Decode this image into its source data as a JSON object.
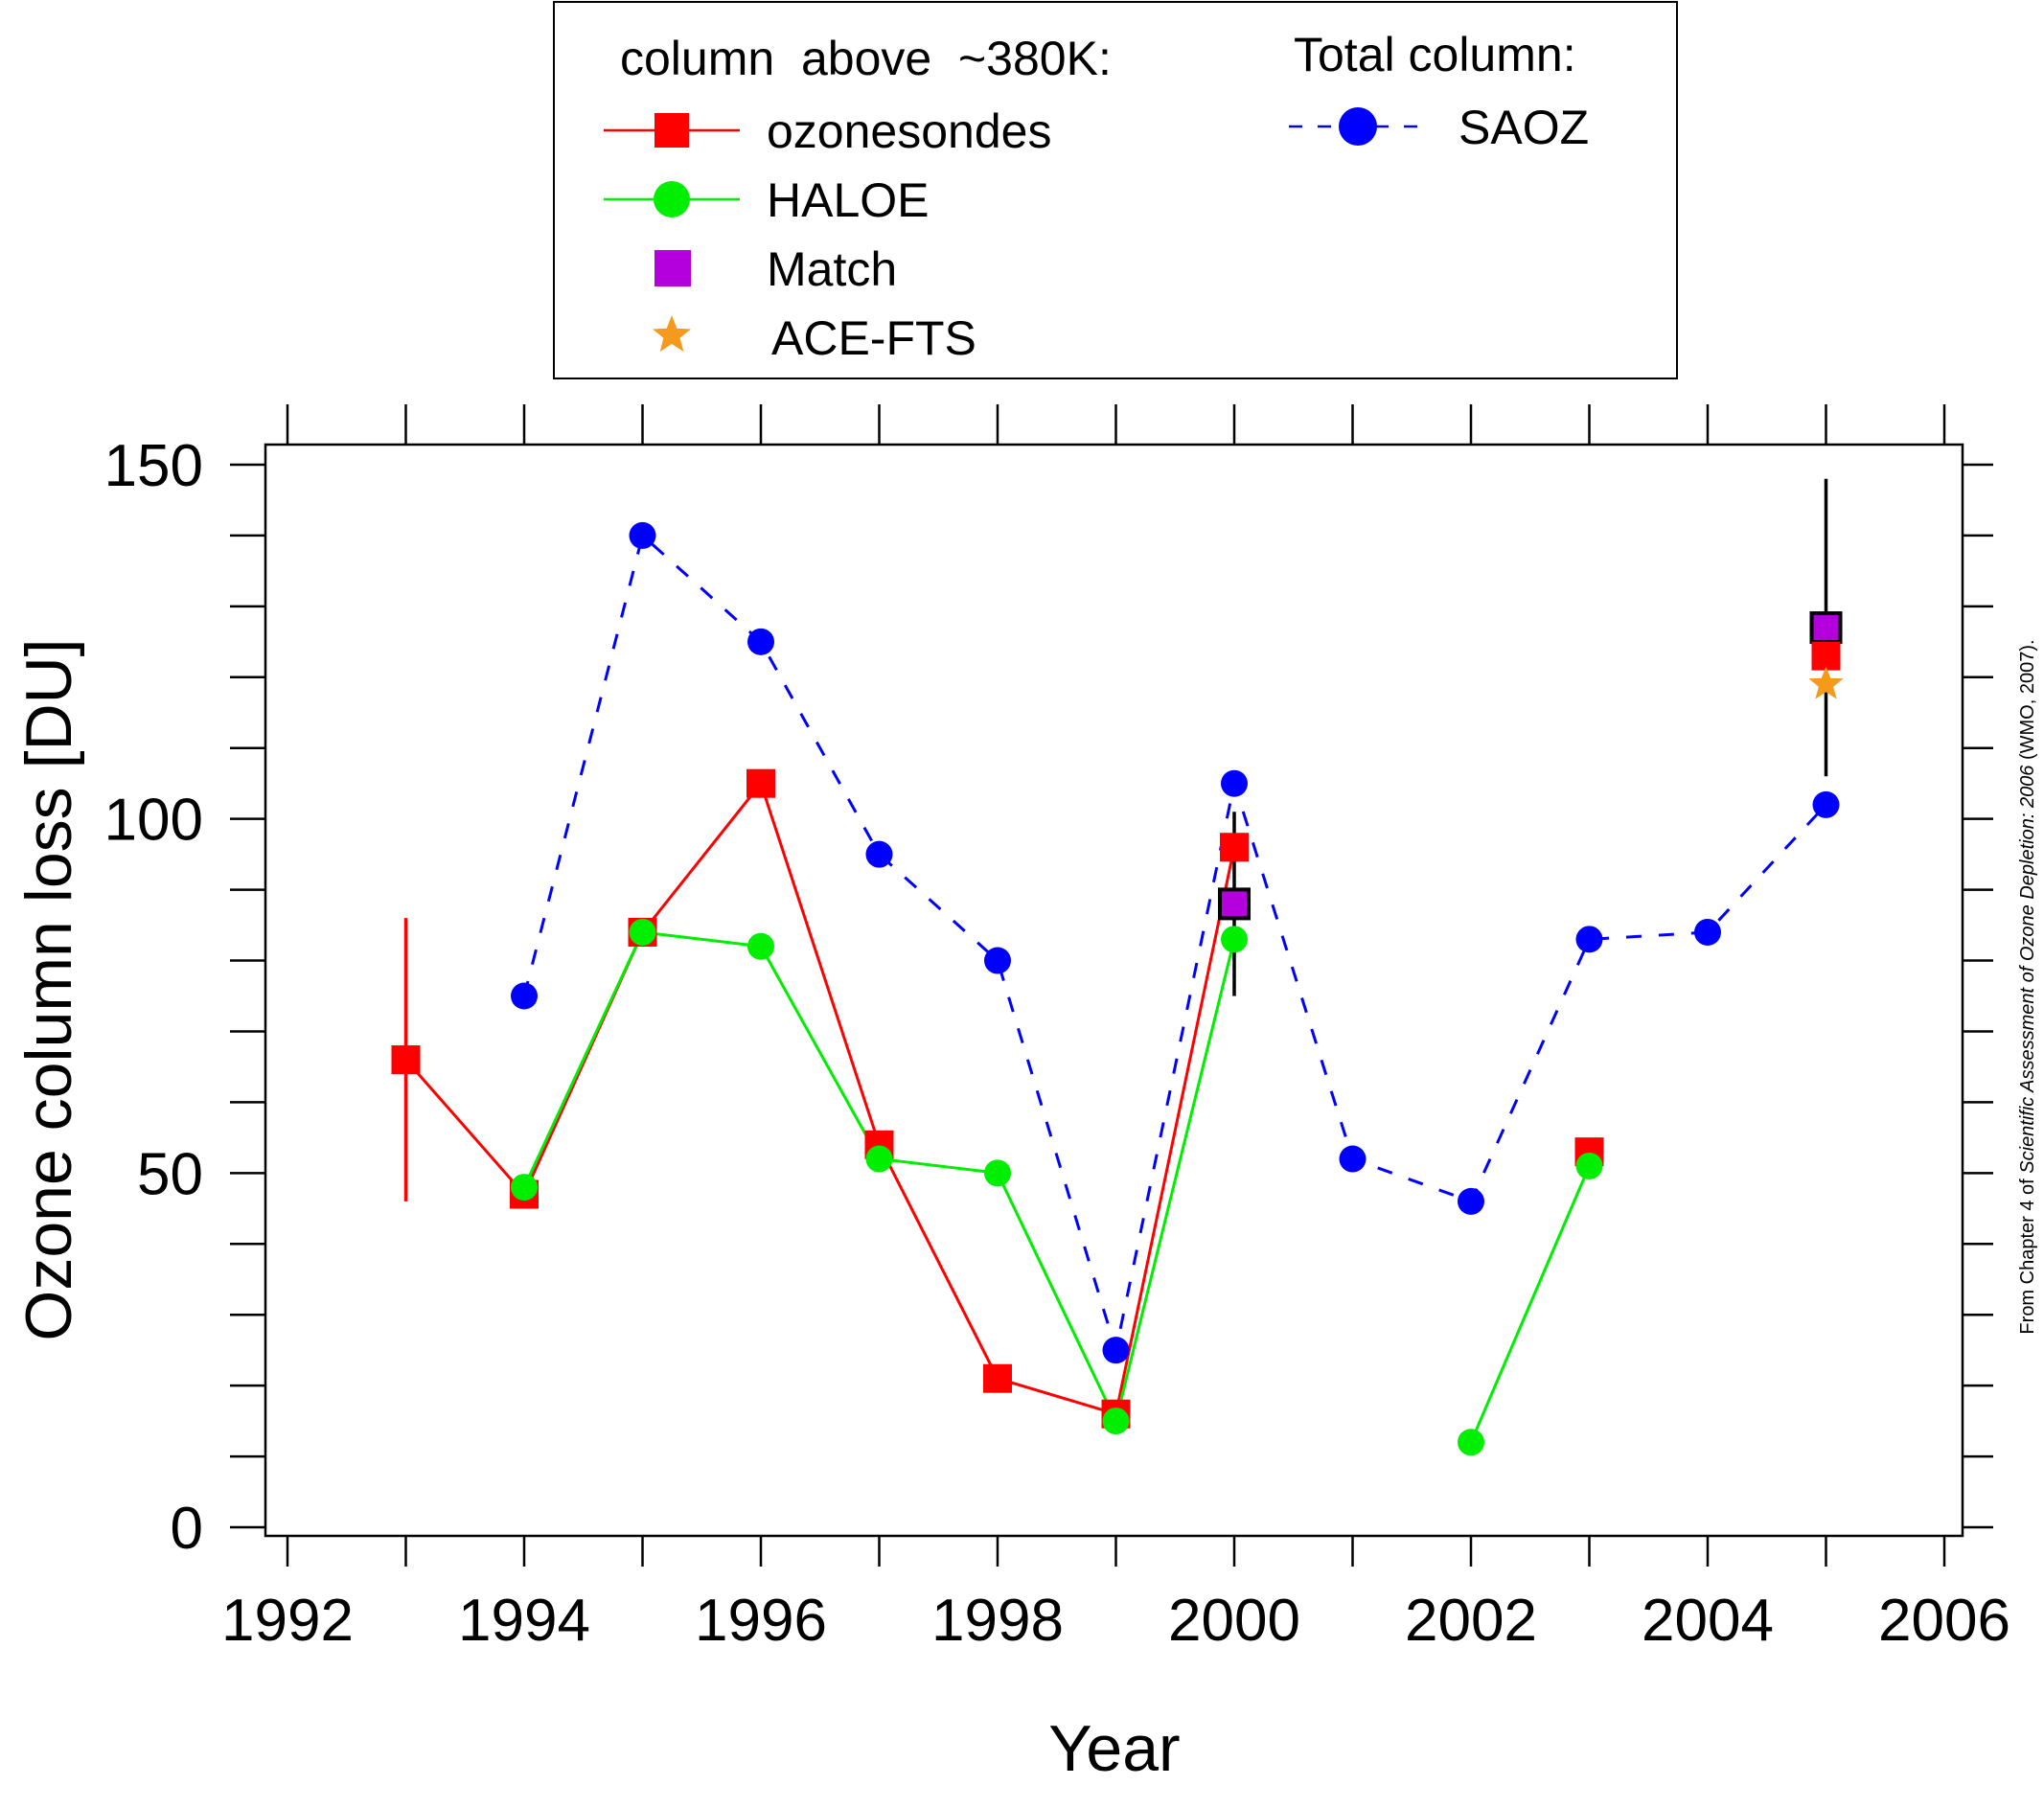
{
  "chart_data": {
    "type": "line",
    "xlabel": "Year",
    "ylabel": "Ozone column loss [DU]",
    "xlim": [
      1992,
      2006
    ],
    "ylim": [
      0,
      150
    ],
    "x_ticks": [
      "1992",
      "1994",
      "1996",
      "1998",
      "2000",
      "2002",
      "2004",
      "2006"
    ],
    "y_ticks": [
      "0",
      "50",
      "100",
      "150"
    ],
    "legend": {
      "placement": "top, outside plot",
      "group1_title": "column  above  ~380K:",
      "group2_title": "Total column:"
    },
    "credit_prefix": "From Chapter 4 of ",
    "credit_title": "Scientific Assessment of Ozone Depletion: 2006",
    "credit_suffix": " (WMO, 2007).",
    "series": [
      {
        "name": "ozonesondes",
        "color": "#ff0000",
        "marker": "square",
        "line": "solid",
        "points": [
          {
            "x": 1993,
            "y": 66,
            "err_low": 46,
            "err_high": 86
          },
          {
            "x": 1994,
            "y": 47
          },
          {
            "x": 1995,
            "y": 84
          },
          {
            "x": 1996,
            "y": 105
          },
          {
            "x": 1997,
            "y": 54
          },
          {
            "x": 1998,
            "y": 21
          },
          {
            "x": 1999,
            "y": 16
          },
          {
            "x": 2000,
            "y": 96
          },
          {
            "x": 2003,
            "y": 53
          },
          {
            "x": 2005,
            "y": 123
          }
        ],
        "segments": [
          [
            0,
            1,
            2,
            3,
            4,
            5,
            6,
            7
          ]
        ]
      },
      {
        "name": "HALOE",
        "color": "#00ee00",
        "marker": "circle",
        "line": "solid",
        "points": [
          {
            "x": 1994,
            "y": 48
          },
          {
            "x": 1995,
            "y": 84
          },
          {
            "x": 1996,
            "y": 82
          },
          {
            "x": 1997,
            "y": 52
          },
          {
            "x": 1998,
            "y": 50
          },
          {
            "x": 1999,
            "y": 15
          },
          {
            "x": 2000,
            "y": 83
          },
          {
            "x": 2002,
            "y": 12
          },
          {
            "x": 2003,
            "y": 51
          }
        ],
        "segments": [
          [
            0,
            1,
            2,
            3,
            4,
            5,
            6
          ],
          [
            7,
            8
          ]
        ]
      },
      {
        "name": "Match",
        "color": "#b400dc",
        "marker": "square-outlined",
        "line": "none",
        "points": [
          {
            "x": 2000,
            "y": 88,
            "err_low": 75,
            "err_high": 101
          },
          {
            "x": 2005,
            "y": 127,
            "err_low": 106,
            "err_high": 148
          }
        ],
        "segments": []
      },
      {
        "name": "ACE-FTS",
        "color": "#f59a1c",
        "marker": "star",
        "line": "none",
        "points": [
          {
            "x": 2005,
            "y": 119
          }
        ],
        "segments": []
      },
      {
        "name": "SAOZ",
        "color": "#0000ff",
        "marker": "circle",
        "line": "dashed",
        "points": [
          {
            "x": 1994,
            "y": 75
          },
          {
            "x": 1995,
            "y": 140
          },
          {
            "x": 1996,
            "y": 125
          },
          {
            "x": 1997,
            "y": 95
          },
          {
            "x": 1998,
            "y": 80
          },
          {
            "x": 1999,
            "y": 25
          },
          {
            "x": 2000,
            "y": 105
          },
          {
            "x": 2001,
            "y": 52
          },
          {
            "x": 2002,
            "y": 46
          },
          {
            "x": 2003,
            "y": 83
          },
          {
            "x": 2004,
            "y": 84
          },
          {
            "x": 2005,
            "y": 102
          }
        ],
        "segments": [
          [
            0,
            1,
            2,
            3,
            4,
            5,
            6,
            7,
            8,
            9,
            10,
            11
          ]
        ]
      }
    ]
  }
}
